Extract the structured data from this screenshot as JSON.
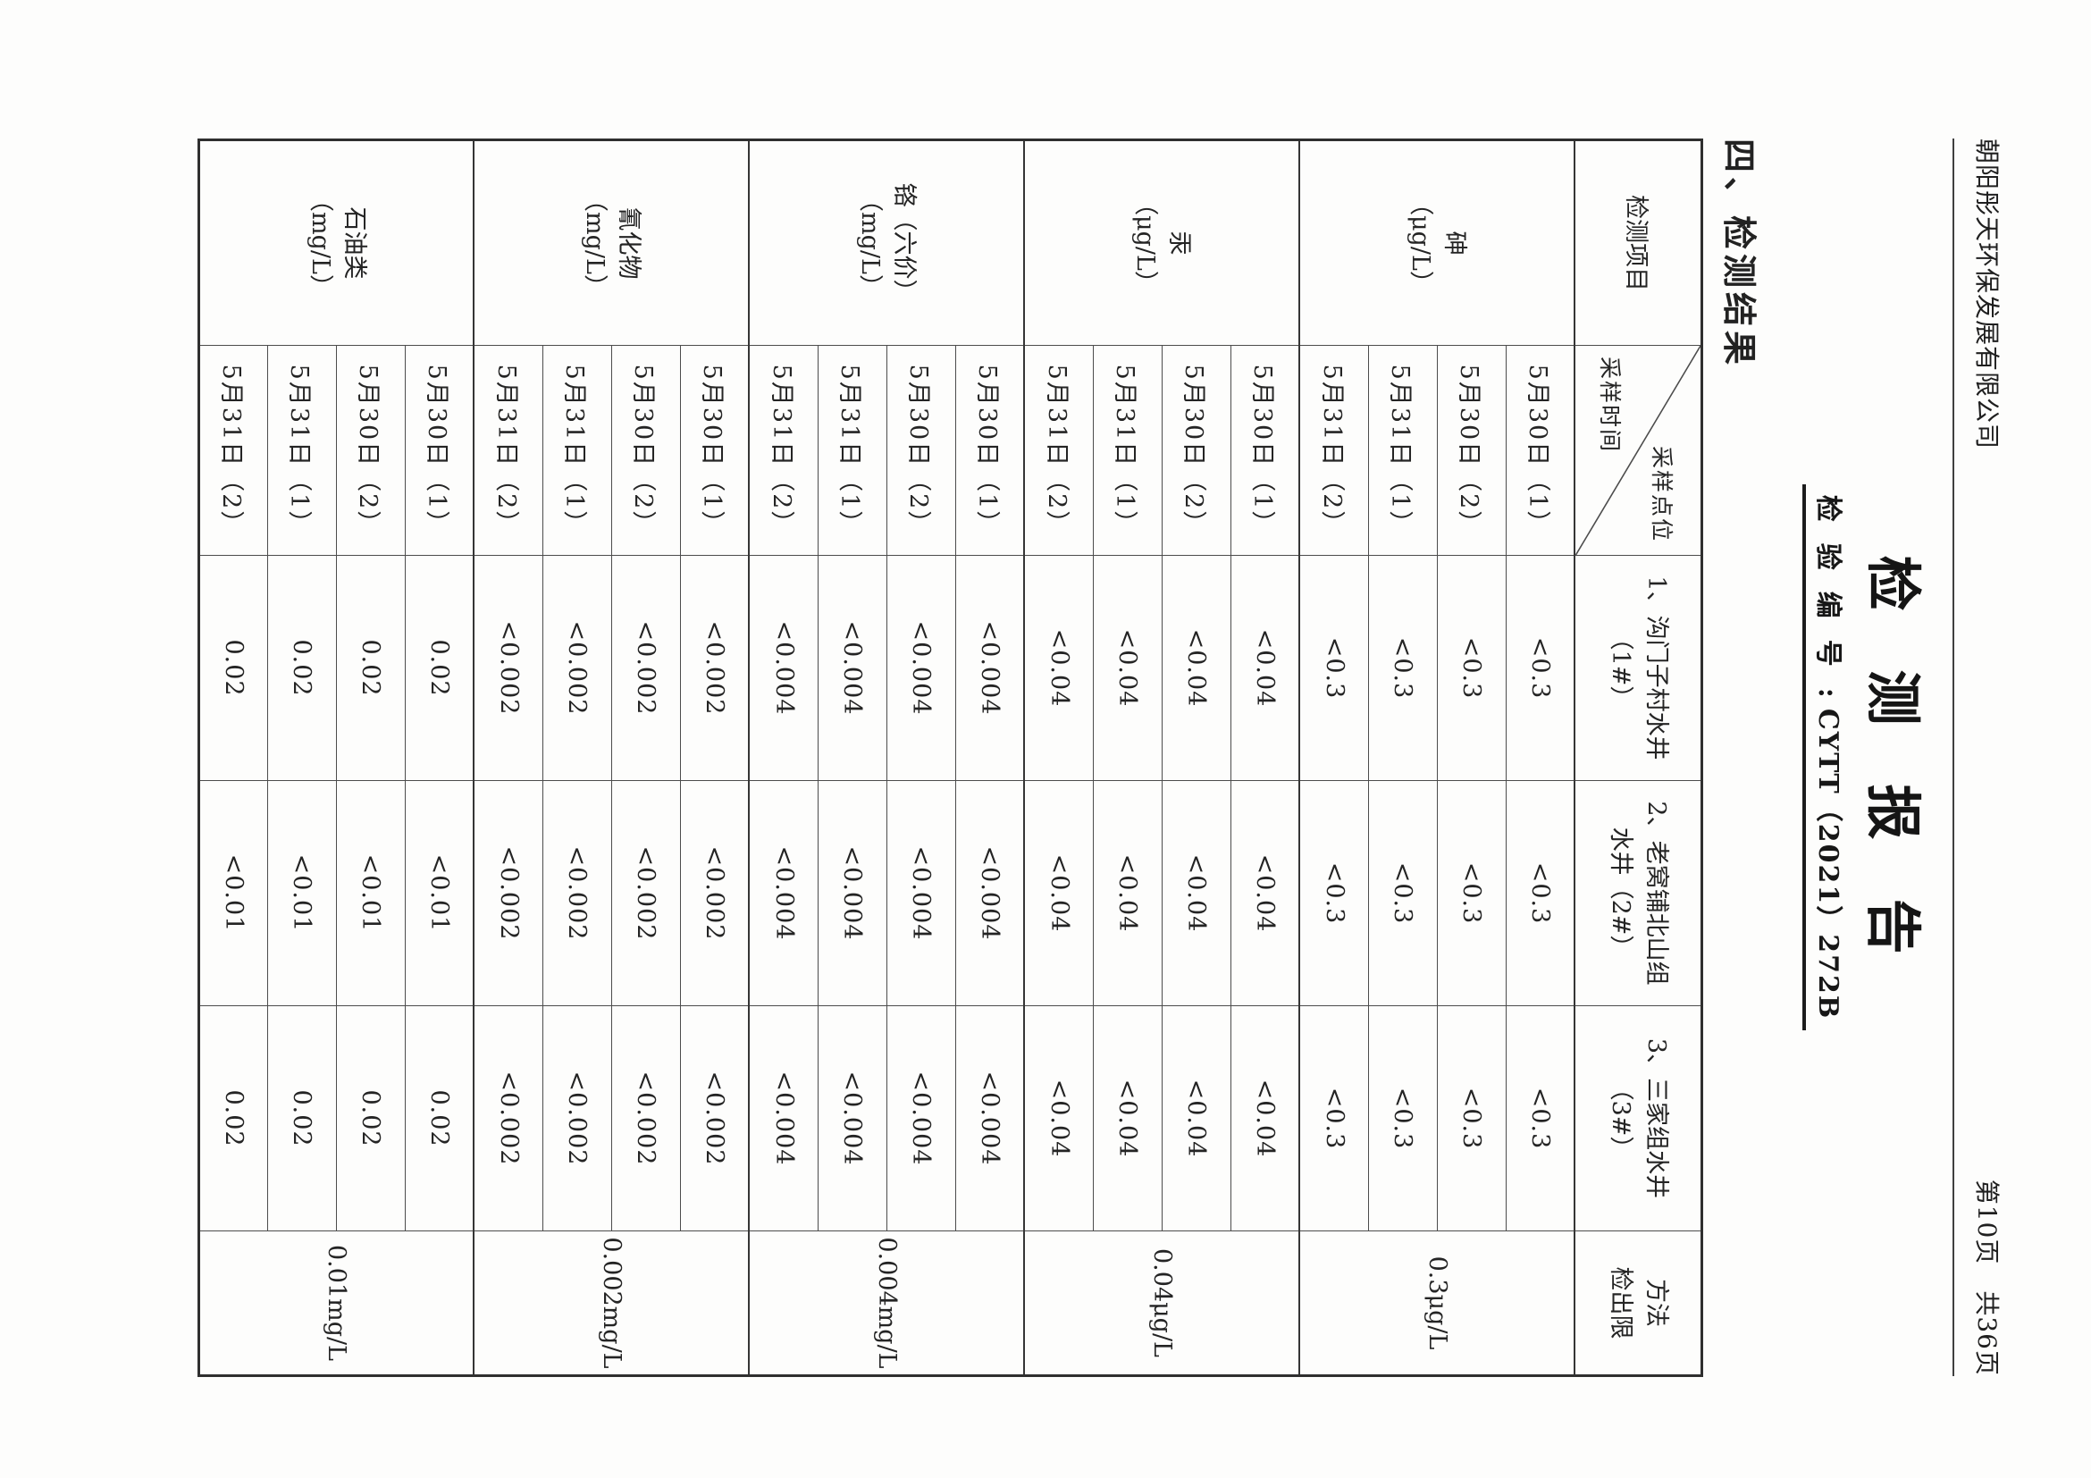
{
  "header": {
    "company": "朝阳彤天环保发展有限公司",
    "page_indicator": "第10页　共36页",
    "title": "检测报告",
    "report_no_label": "检验编号",
    "report_no_sep": ":",
    "report_no_value": "CYTT（2021）272B"
  },
  "section": {
    "heading": "四、检测结果"
  },
  "table": {
    "header": {
      "item": "检测项目",
      "diagonal_top": "采样点位",
      "diagonal_bottom": "采样时间",
      "wells": [
        {
          "line1": "1、沟门子村水井",
          "line2": "（1#）"
        },
        {
          "line1": "2、老窝铺北山组",
          "line2": "水井（2#）"
        },
        {
          "line1": "3、三家组水井",
          "line2": "（3#）"
        }
      ],
      "limit_line1": "方法",
      "limit_line2": "检出限"
    },
    "groups": [
      {
        "item": "砷",
        "unit": "（μg/L）",
        "limit": "0.3μg/L",
        "rows": [
          {
            "time": "5月30日（1）",
            "values": [
              "<0.3",
              "<0.3",
              "<0.3"
            ]
          },
          {
            "time": "5月30日（2）",
            "values": [
              "<0.3",
              "<0.3",
              "<0.3"
            ]
          },
          {
            "time": "5月31日（1）",
            "values": [
              "<0.3",
              "<0.3",
              "<0.3"
            ]
          },
          {
            "time": "5月31日（2）",
            "values": [
              "<0.3",
              "<0.3",
              "<0.3"
            ]
          }
        ]
      },
      {
        "item": "汞",
        "unit": "（μg/L）",
        "limit": "0.04μg/L",
        "rows": [
          {
            "time": "5月30日（1）",
            "values": [
              "<0.04",
              "<0.04",
              "<0.04"
            ]
          },
          {
            "time": "5月30日（2）",
            "values": [
              "<0.04",
              "<0.04",
              "<0.04"
            ]
          },
          {
            "time": "5月31日（1）",
            "values": [
              "<0.04",
              "<0.04",
              "<0.04"
            ]
          },
          {
            "time": "5月31日（2）",
            "values": [
              "<0.04",
              "<0.04",
              "<0.04"
            ]
          }
        ]
      },
      {
        "item": "铬（六价）",
        "unit": "（mg/L）",
        "limit": "0.004mg/L",
        "rows": [
          {
            "time": "5月30日（1）",
            "values": [
              "<0.004",
              "<0.004",
              "<0.004"
            ]
          },
          {
            "time": "5月30日（2）",
            "values": [
              "<0.004",
              "<0.004",
              "<0.004"
            ]
          },
          {
            "time": "5月31日（1）",
            "values": [
              "<0.004",
              "<0.004",
              "<0.004"
            ]
          },
          {
            "time": "5月31日（2）",
            "values": [
              "<0.004",
              "<0.004",
              "<0.004"
            ]
          }
        ]
      },
      {
        "item": "氰化物",
        "unit": "（mg/L）",
        "limit": "0.002mg/L",
        "rows": [
          {
            "time": "5月30日（1）",
            "values": [
              "<0.002",
              "<0.002",
              "<0.002"
            ]
          },
          {
            "time": "5月30日（2）",
            "values": [
              "<0.002",
              "<0.002",
              "<0.002"
            ]
          },
          {
            "time": "5月31日（1）",
            "values": [
              "<0.002",
              "<0.002",
              "<0.002"
            ]
          },
          {
            "time": "5月31日（2）",
            "values": [
              "<0.002",
              "<0.002",
              "<0.002"
            ]
          }
        ]
      },
      {
        "item": "石油类",
        "unit": "（mg/L）",
        "limit": "0.01mg/L",
        "rows": [
          {
            "time": "5月30日（1）",
            "values": [
              "0.02",
              "<0.01",
              "0.02"
            ]
          },
          {
            "time": "5月30日（2）",
            "values": [
              "0.02",
              "<0.01",
              "0.02"
            ]
          },
          {
            "time": "5月31日（1）",
            "values": [
              "0.02",
              "<0.01",
              "0.02"
            ]
          },
          {
            "time": "5月31日（2）",
            "values": [
              "0.02",
              "<0.01",
              "0.02"
            ]
          }
        ]
      }
    ]
  }
}
